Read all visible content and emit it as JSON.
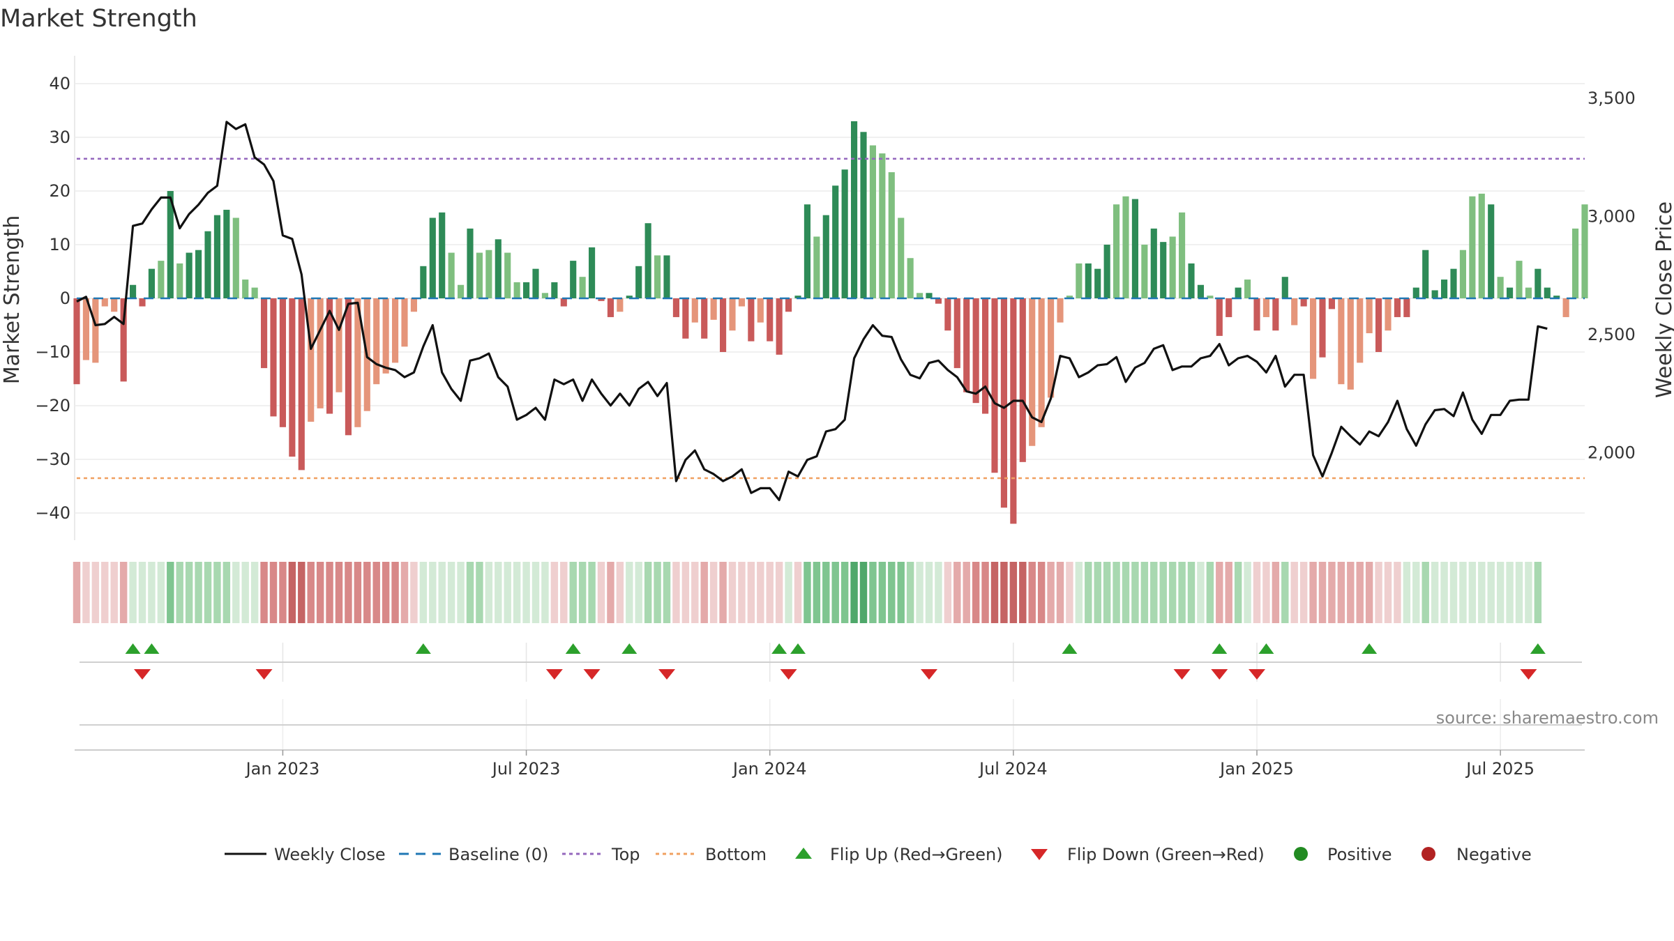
{
  "title": "Market Strength",
  "source_text": "source: sharemaestro.com",
  "colors": {
    "pos_strong": "#2e8b57",
    "pos_light": "#7fbf7f",
    "neg_strong": "#c95a5a",
    "neg_light": "#e5957a",
    "close_line": "#111111",
    "baseline": "#1f77b4",
    "top": "#9467bd",
    "bottom": "#f0a060",
    "flip_up": "#2ca02c",
    "flip_down": "#d62728",
    "positive": "#228b22",
    "negative": "#b22222"
  },
  "legend": [
    {
      "key": "close",
      "label": "Weekly Close"
    },
    {
      "key": "baseline",
      "label": "Baseline (0)"
    },
    {
      "key": "top",
      "label": "Top"
    },
    {
      "key": "bottom",
      "label": "Bottom"
    },
    {
      "key": "flip_up",
      "label": "Flip Up (Red→Green)"
    },
    {
      "key": "flip_down",
      "label": "Flip Down (Green→Red)"
    },
    {
      "key": "positive",
      "label": "Positive"
    },
    {
      "key": "negative",
      "label": "Negative"
    }
  ],
  "chart_data": {
    "type": "bar",
    "ylabel": "Market Strength",
    "y2label": "Weekly Close Price",
    "ylim": [
      -45,
      45
    ],
    "y2lim": [
      1630,
      3680
    ],
    "yticks": [
      40,
      30,
      20,
      10,
      0,
      -10,
      -20,
      -30,
      -40
    ],
    "y2ticks": [
      3500,
      3000,
      2500,
      2000
    ],
    "xticks": [
      {
        "label": "Jan 2023",
        "week": 22
      },
      {
        "label": "Jul 2023",
        "week": 48
      },
      {
        "label": "Jan 2024",
        "week": 74
      },
      {
        "label": "Jul 2024",
        "week": 100
      },
      {
        "label": "Jan 2025",
        "week": 126
      },
      {
        "label": "Jul 2025",
        "week": 152
      }
    ],
    "top_threshold": 26,
    "bottom_threshold": -33.5,
    "baseline": 0,
    "strength": [
      -16,
      -11.5,
      -12,
      -1.5,
      -2.5,
      -15.5,
      2.5,
      -1.5,
      5.5,
      7,
      20,
      6.5,
      8.5,
      9,
      12.5,
      15.5,
      16.5,
      15,
      3.5,
      2,
      -13,
      -22,
      -24,
      -29.5,
      -32,
      -23,
      -20.5,
      -21.5,
      -17.5,
      -25.5,
      -24,
      -21,
      -16,
      -14,
      -12,
      -9,
      -2.5,
      6,
      15,
      16,
      8.5,
      2.5,
      13,
      8.5,
      9,
      11,
      8.5,
      3,
      3,
      5.5,
      1,
      3,
      -1.5,
      7,
      4,
      9.5,
      -0.5,
      -3.5,
      -2.5,
      0.5,
      6,
      14,
      8,
      8,
      -3.5,
      -7.5,
      -4.5,
      -7.5,
      -4,
      -10,
      -6,
      -1.5,
      -8,
      -4.5,
      -8,
      -10.5,
      -2.5,
      0.5,
      17.5,
      11.5,
      15.5,
      21,
      24,
      33,
      31,
      28.5,
      27,
      23.5,
      15,
      7.5,
      1,
      1,
      -1,
      -6,
      -13,
      -17.5,
      -19.5,
      -21.5,
      -32.5,
      -39,
      -42,
      -30.5,
      -27.5,
      -24,
      -18.5,
      -4.5,
      0.5,
      6.5,
      6.5,
      5.5,
      10,
      17.5,
      19,
      18.5,
      10,
      13,
      10.5,
      11.5,
      16,
      6.5,
      2.5,
      0.5,
      -7,
      -3.5,
      2,
      3.5,
      -6,
      -3.5,
      -6,
      4,
      -5,
      -1.5,
      -15,
      -11,
      -2,
      -16,
      -17,
      -12,
      -6.5,
      -10,
      -6,
      -3.5,
      -3.5,
      2,
      9,
      1.5,
      3.5,
      5.5,
      9,
      19,
      19.5,
      17.5,
      4,
      2,
      7,
      2,
      5.5,
      2,
      0.5,
      -3.5,
      13,
      17.5
    ],
    "strength_shade": [
      1,
      0,
      0,
      0,
      0,
      1,
      1,
      1,
      1,
      0,
      1,
      0,
      1,
      1,
      1,
      1,
      1,
      0,
      0,
      0,
      1,
      1,
      1,
      1,
      1,
      0,
      0,
      1,
      0,
      1,
      0,
      0,
      0,
      0,
      0,
      0,
      0,
      1,
      1,
      1,
      0,
      0,
      1,
      0,
      0,
      1,
      0,
      0,
      1,
      1,
      0,
      1,
      1,
      1,
      0,
      1,
      1,
      1,
      0,
      1,
      1,
      1,
      0,
      1,
      1,
      1,
      0,
      1,
      0,
      1,
      0,
      0,
      1,
      0,
      1,
      1,
      1,
      1,
      1,
      0,
      1,
      1,
      1,
      1,
      1,
      0,
      0,
      0,
      0,
      0,
      0,
      1,
      1,
      1,
      1,
      1,
      1,
      1,
      1,
      1,
      1,
      1,
      0,
      0,
      0,
      0,
      0,
      0,
      1,
      1,
      1,
      0,
      0,
      1,
      0,
      1,
      1,
      0,
      0,
      1,
      1,
      0,
      1,
      1,
      1,
      0,
      1,
      0,
      1,
      1,
      0,
      1,
      0,
      1,
      1,
      0,
      0,
      0,
      0,
      1,
      0,
      1,
      1,
      1,
      1,
      1,
      1,
      1,
      0,
      0,
      0,
      1,
      0,
      1,
      0,
      0,
      1,
      1,
      1
    ],
    "weekly_close": [
      2640,
      2660,
      2540,
      2545,
      2575,
      2545,
      2960,
      2970,
      3030,
      3080,
      3080,
      2950,
      3010,
      3050,
      3100,
      3130,
      3400,
      3370,
      3390,
      3250,
      3220,
      3150,
      2920,
      2905,
      2755,
      2440,
      2520,
      2600,
      2520,
      2630,
      2635,
      2405,
      2375,
      2360,
      2350,
      2320,
      2340,
      2450,
      2540,
      2340,
      2270,
      2220,
      2390,
      2400,
      2420,
      2320,
      2280,
      2140,
      2160,
      2190,
      2140,
      2310,
      2290,
      2310,
      2220,
      2310,
      2250,
      2200,
      2250,
      2200,
      2270,
      2300,
      2240,
      2295,
      1880,
      1970,
      2010,
      1930,
      1910,
      1880,
      1900,
      1930,
      1830,
      1850,
      1850,
      1800,
      1920,
      1900,
      1970,
      1985,
      2090,
      2100,
      2140,
      2400,
      2480,
      2540,
      2495,
      2490,
      2395,
      2330,
      2315,
      2380,
      2390,
      2350,
      2320,
      2260,
      2250,
      2280,
      2210,
      2190,
      2220,
      2220,
      2150,
      2130,
      2230,
      2410,
      2400,
      2320,
      2340,
      2370,
      2375,
      2405,
      2300,
      2360,
      2380,
      2440,
      2455,
      2350,
      2365,
      2365,
      2400,
      2410,
      2460,
      2370,
      2400,
      2410,
      2385,
      2340,
      2410,
      2280,
      2330,
      2330,
      1990,
      1900,
      2000,
      2110,
      2070,
      2035,
      2090,
      2070,
      2130,
      2220,
      2100,
      2030,
      2120,
      2180,
      2185,
      2155,
      2255,
      2140,
      2080,
      2160,
      2160,
      2220,
      2225,
      2225,
      2535,
      2525
    ],
    "regime_level": [
      2,
      1,
      1,
      1,
      1,
      2,
      1,
      1,
      1,
      1,
      3,
      2,
      2,
      2,
      2,
      2,
      2,
      1,
      1,
      1,
      3,
      3,
      3,
      4,
      4,
      3,
      3,
      3,
      3,
      3,
      3,
      3,
      3,
      3,
      3,
      2,
      1,
      1,
      1,
      1,
      1,
      1,
      2,
      2,
      1,
      1,
      1,
      1,
      1,
      1,
      1,
      1,
      1,
      2,
      2,
      2,
      1,
      2,
      1,
      1,
      1,
      2,
      2,
      2,
      1,
      1,
      1,
      2,
      1,
      2,
      1,
      1,
      1,
      1,
      1,
      1,
      1,
      1,
      3,
      3,
      3,
      3,
      3,
      4,
      4,
      3,
      3,
      3,
      3,
      2,
      1,
      1,
      1,
      1,
      2,
      2,
      3,
      3,
      4,
      4,
      4,
      4,
      3,
      3,
      2,
      2,
      1,
      1,
      2,
      2,
      2,
      2,
      2,
      2,
      2,
      2,
      2,
      2,
      2,
      2,
      1,
      2,
      2,
      2,
      2,
      1,
      1,
      1,
      2,
      2,
      1,
      1,
      2,
      2,
      2,
      2,
      2,
      2,
      2,
      1,
      1,
      1,
      1,
      1,
      2,
      1,
      1,
      1,
      1,
      1,
      1,
      1,
      1,
      1,
      1,
      1,
      2
    ],
    "regime_sign": [
      -1,
      -1,
      -1,
      -1,
      -1,
      -1,
      1,
      1,
      1,
      1,
      1,
      1,
      1,
      1,
      1,
      1,
      1,
      1,
      1,
      1,
      -1,
      -1,
      -1,
      -1,
      -1,
      -1,
      -1,
      -1,
      -1,
      -1,
      -1,
      -1,
      -1,
      -1,
      -1,
      -1,
      -1,
      1,
      1,
      1,
      1,
      1,
      1,
      1,
      1,
      1,
      1,
      1,
      1,
      1,
      1,
      -1,
      -1,
      1,
      1,
      1,
      -1,
      -1,
      -1,
      1,
      1,
      1,
      1,
      1,
      -1,
      -1,
      -1,
      -1,
      -1,
      -1,
      -1,
      -1,
      -1,
      -1,
      -1,
      -1,
      1,
      -1,
      1,
      1,
      1,
      1,
      1,
      1,
      1,
      1,
      1,
      1,
      1,
      1,
      1,
      1,
      1,
      -1,
      -1,
      -1,
      -1,
      -1,
      -1,
      -1,
      -1,
      -1,
      -1,
      -1,
      -1,
      -1,
      -1,
      1,
      1,
      1,
      1,
      1,
      1,
      1,
      1,
      1,
      1,
      1,
      1,
      1,
      1,
      1,
      -1,
      -1,
      1,
      1,
      -1,
      -1,
      -1,
      1,
      -1,
      -1,
      -1,
      -1,
      -1,
      -1,
      -1,
      -1,
      -1,
      -1,
      -1,
      -1,
      1,
      1,
      1,
      1,
      1,
      1,
      1,
      1,
      1,
      1,
      1,
      1,
      1,
      1,
      1,
      1,
      -1,
      1
    ],
    "flip_up_weeks": [
      6,
      8,
      37,
      53,
      59,
      75,
      77,
      106,
      122,
      127,
      138,
      156
    ],
    "flip_down_weeks": [
      7,
      20,
      51,
      55,
      63,
      76,
      91,
      118,
      122,
      126,
      155
    ]
  }
}
